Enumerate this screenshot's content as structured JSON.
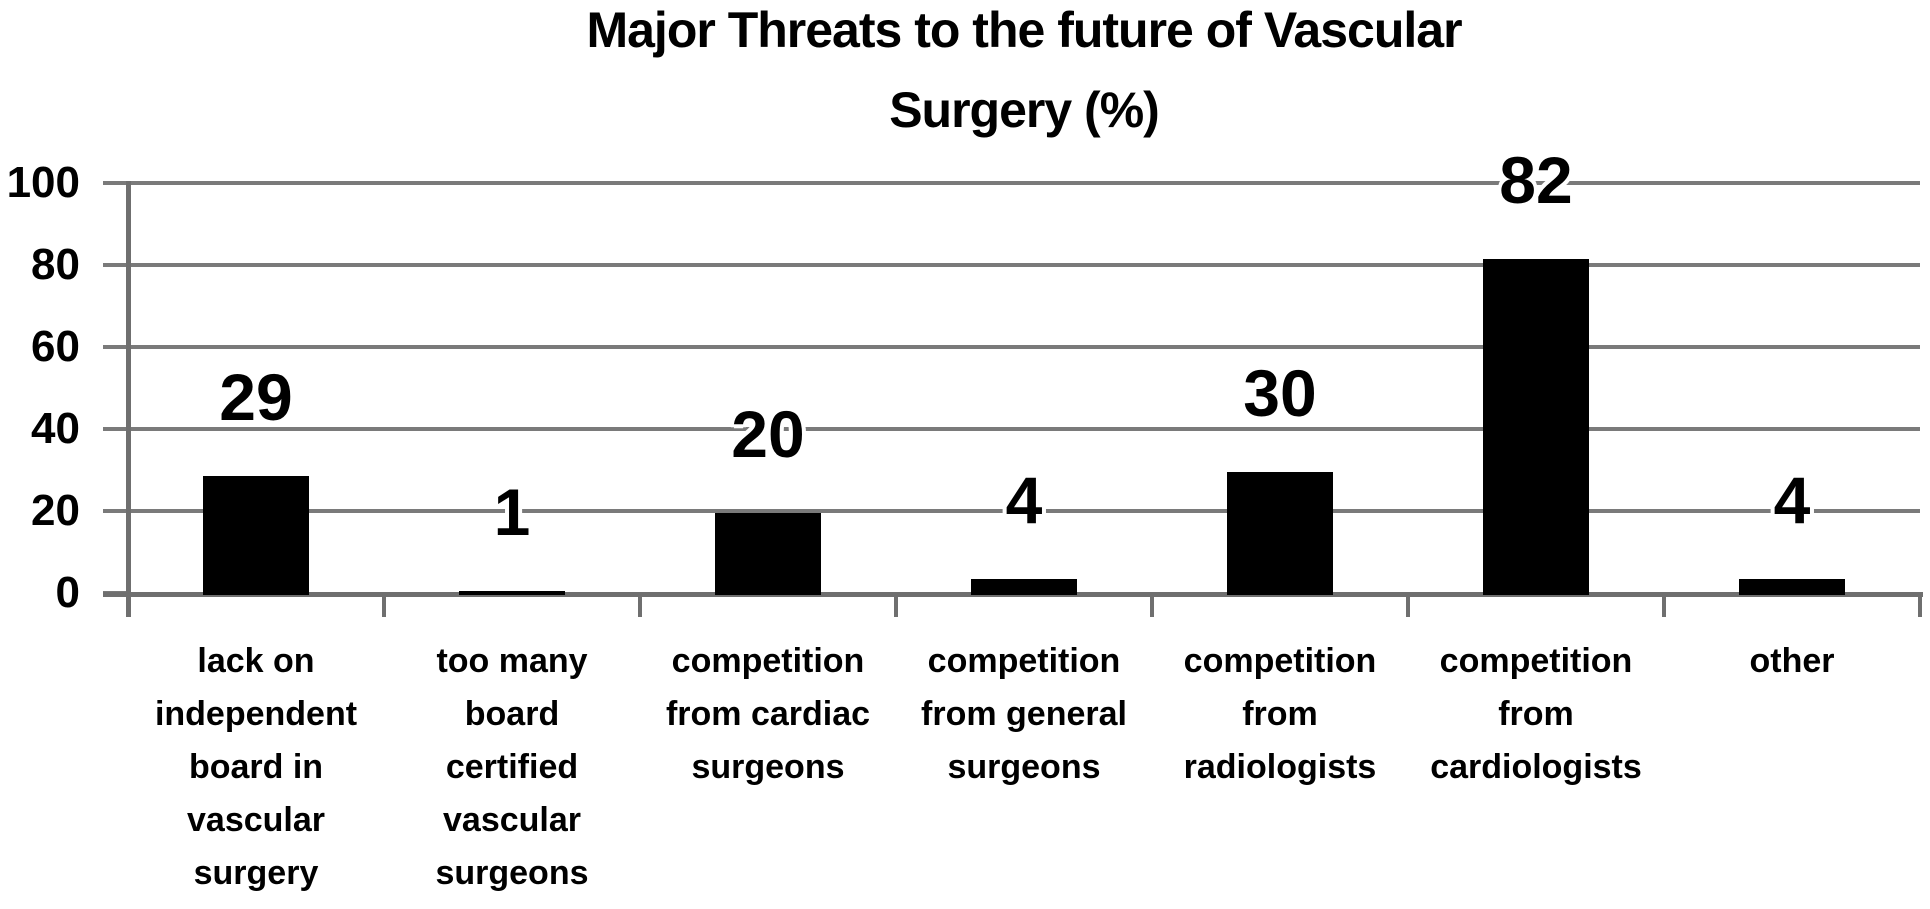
{
  "page": {
    "background": "#ffffff"
  },
  "chart_data": {
    "type": "bar",
    "title": "Major Threats to the future of Vascular Surgery (%)",
    "title_lines": [
      "Major Threats to the future of Vascular",
      "Surgery (%)"
    ],
    "categories": [
      "lack on independent board in vascular surgery",
      "too many board certified vascular surgeons",
      "competition from cardiac surgeons",
      "competition from general surgeons",
      "competition from radiologists",
      "competition from cardiologists",
      "other"
    ],
    "category_lines": [
      [
        "lack on",
        "independent",
        "board in",
        "vascular",
        "surgery"
      ],
      [
        "too many",
        "board",
        "certified",
        "vascular",
        "surgeons"
      ],
      [
        "competition",
        "from cardiac",
        "surgeons"
      ],
      [
        "competition",
        "from general",
        "surgeons"
      ],
      [
        "competition",
        "from",
        "radiologists"
      ],
      [
        "competition",
        "from",
        "cardiologists"
      ],
      [
        "other"
      ]
    ],
    "values": [
      29,
      1,
      20,
      4,
      30,
      82,
      4
    ],
    "value_labels": [
      "29",
      "1",
      "20",
      "4",
      "30",
      "82",
      "4"
    ],
    "yticks": [
      0,
      20,
      40,
      60,
      80,
      100
    ],
    "ylim": [
      0,
      100
    ],
    "xlabel": "",
    "ylabel": "",
    "grid": true,
    "legend": "none",
    "colors": {
      "bar": "#000000",
      "gridline": "#7a7a7a",
      "axis": "#6f6f6f",
      "text": "#000000",
      "background": "#ffffff"
    }
  }
}
